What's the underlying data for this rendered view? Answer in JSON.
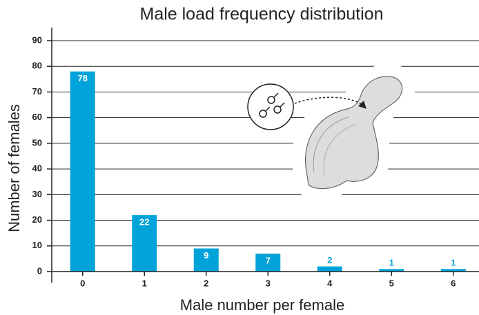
{
  "chart_data": {
    "type": "bar",
    "title": "Male load frequency distribution",
    "x_label": "Male number per female",
    "y_label": "Number of females",
    "categories": [
      "0",
      "1",
      "2",
      "3",
      "4",
      "5",
      "6"
    ],
    "values": [
      78,
      22,
      9,
      7,
      2,
      1,
      1
    ],
    "color": "#00a3d9",
    "ylim": [
      0,
      90
    ],
    "yticks": [
      0,
      10,
      20,
      30,
      40,
      50,
      60,
      70,
      80,
      90
    ],
    "grid": true
  }
}
